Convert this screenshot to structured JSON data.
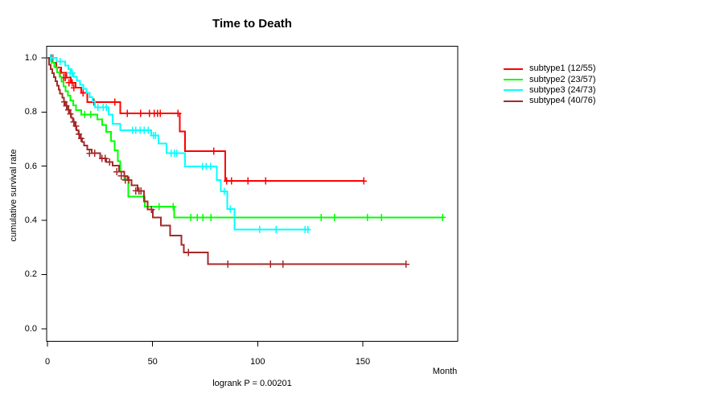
{
  "chart_data": {
    "type": "line",
    "variant": "kaplan_meier_step_curves",
    "title": "Time to Death",
    "xlabel": "Month",
    "ylabel": "cumulative survival rate",
    "annotation": "logrank P = 0.00201",
    "xlim": [
      0,
      196
    ],
    "ylim": [
      0,
      1
    ],
    "grid": false,
    "legend_position": "right",
    "x_ticks": [
      0,
      50,
      100,
      150
    ],
    "y_ticks": [
      0,
      0.2,
      0.4,
      0.6,
      0.8,
      1.0
    ],
    "x_tick_labels": [
      "0",
      "50",
      "100",
      "150"
    ],
    "y_tick_labels_top_to_bottom": [
      "1.0",
      "0.8",
      "0.6",
      "0.4",
      "0.2",
      "0.0"
    ],
    "series": [
      {
        "name": "subtype1",
        "label": "subtype1 (12/55)",
        "events": 12,
        "n": 55,
        "color": "#FF0000",
        "steps": [
          [
            0,
            1.0
          ],
          [
            2.4,
            0.982
          ],
          [
            4.2,
            0.964
          ],
          [
            6.5,
            0.945
          ],
          [
            9,
            0.927
          ],
          [
            11.1,
            0.908
          ],
          [
            13.3,
            0.89
          ],
          [
            16,
            0.87
          ],
          [
            19,
            0.837
          ],
          [
            34.7,
            0.795
          ],
          [
            63,
            0.728
          ],
          [
            65.5,
            0.655
          ],
          [
            84.6,
            0.545
          ]
        ],
        "end_month": 150.4,
        "censor_marks": [
          [
            1.8,
            1.0
          ],
          [
            2.6,
            1.0
          ],
          [
            6,
            0.945
          ],
          [
            7.8,
            0.927
          ],
          [
            8.5,
            0.927
          ],
          [
            10.2,
            0.908
          ],
          [
            11.8,
            0.908
          ],
          [
            12.6,
            0.89
          ],
          [
            17,
            0.87
          ],
          [
            22,
            0.837
          ],
          [
            32,
            0.837
          ],
          [
            37.9,
            0.795
          ],
          [
            44.3,
            0.795
          ],
          [
            48.5,
            0.795
          ],
          [
            50.8,
            0.795
          ],
          [
            52.3,
            0.795
          ],
          [
            53.6,
            0.795
          ],
          [
            62.1,
            0.795
          ],
          [
            79,
            0.655
          ],
          [
            85.3,
            0.545
          ],
          [
            87.6,
            0.545
          ],
          [
            95.3,
            0.545
          ],
          [
            103.7,
            0.545
          ],
          [
            150.4,
            0.545
          ]
        ]
      },
      {
        "name": "subtype2",
        "label": "subtype2 (23/57)",
        "events": 23,
        "n": 57,
        "color": "#00FF00",
        "steps": [
          [
            0,
            1.0
          ],
          [
            2,
            0.982
          ],
          [
            3.3,
            0.965
          ],
          [
            4.5,
            0.947
          ],
          [
            5.7,
            0.93
          ],
          [
            6.7,
            0.912
          ],
          [
            7.7,
            0.894
          ],
          [
            8.7,
            0.877
          ],
          [
            9.7,
            0.86
          ],
          [
            11,
            0.842
          ],
          [
            12.2,
            0.824
          ],
          [
            13.5,
            0.807
          ],
          [
            16,
            0.79
          ],
          [
            23.8,
            0.772
          ],
          [
            26,
            0.752
          ],
          [
            28,
            0.727
          ],
          [
            30.2,
            0.693
          ],
          [
            32,
            0.658
          ],
          [
            33.5,
            0.618
          ],
          [
            34.7,
            0.58
          ],
          [
            36.6,
            0.549
          ],
          [
            38.5,
            0.487
          ],
          [
            46.3,
            0.45
          ],
          [
            60.3,
            0.411
          ]
        ],
        "end_month": 187.9,
        "censor_marks": [
          [
            17.6,
            0.79
          ],
          [
            20.5,
            0.79
          ],
          [
            53,
            0.45
          ],
          [
            59.8,
            0.45
          ],
          [
            68.1,
            0.411
          ],
          [
            71.3,
            0.411
          ],
          [
            73.9,
            0.411
          ],
          [
            77.7,
            0.411
          ],
          [
            130.1,
            0.411
          ],
          [
            136.5,
            0.411
          ],
          [
            152.2,
            0.411
          ],
          [
            158.9,
            0.411
          ],
          [
            187.9,
            0.411
          ]
        ]
      },
      {
        "name": "subtype3",
        "label": "subtype3 (24/73)",
        "events": 24,
        "n": 73,
        "color": "#00FFFF",
        "steps": [
          [
            0,
            1.0
          ],
          [
            4.4,
            0.986
          ],
          [
            8.5,
            0.972
          ],
          [
            10,
            0.958
          ],
          [
            11.5,
            0.944
          ],
          [
            12.5,
            0.93
          ],
          [
            14,
            0.915
          ],
          [
            15.5,
            0.9
          ],
          [
            17,
            0.885
          ],
          [
            18.5,
            0.87
          ],
          [
            20,
            0.855
          ],
          [
            21.5,
            0.84
          ],
          [
            22.6,
            0.817
          ],
          [
            29,
            0.79
          ],
          [
            31,
            0.757
          ],
          [
            34.7,
            0.733
          ],
          [
            49.4,
            0.713
          ],
          [
            52.8,
            0.683
          ],
          [
            56.6,
            0.648
          ],
          [
            65.5,
            0.599
          ],
          [
            80.5,
            0.549
          ],
          [
            82.5,
            0.507
          ],
          [
            85.5,
            0.441
          ],
          [
            88.9,
            0.366
          ]
        ],
        "end_month": 124.8,
        "censor_marks": [
          [
            1.5,
            1.0
          ],
          [
            2.8,
            1.0
          ],
          [
            6,
            0.986
          ],
          [
            10.8,
            0.944
          ],
          [
            11.8,
            0.944
          ],
          [
            24,
            0.817
          ],
          [
            26.5,
            0.817
          ],
          [
            28,
            0.817
          ],
          [
            40.4,
            0.733
          ],
          [
            42,
            0.733
          ],
          [
            44,
            0.733
          ],
          [
            46,
            0.733
          ],
          [
            48,
            0.733
          ],
          [
            50.4,
            0.713
          ],
          [
            51.4,
            0.713
          ],
          [
            58.9,
            0.648
          ],
          [
            60.3,
            0.648
          ],
          [
            61.4,
            0.648
          ],
          [
            73.7,
            0.599
          ],
          [
            75.5,
            0.599
          ],
          [
            77.6,
            0.599
          ],
          [
            84,
            0.507
          ],
          [
            87,
            0.441
          ],
          [
            101,
            0.366
          ],
          [
            108.8,
            0.366
          ],
          [
            122.6,
            0.366
          ],
          [
            123.8,
            0.366
          ]
        ]
      },
      {
        "name": "subtype4",
        "label": "subtype4 (40/76)",
        "events": 40,
        "n": 76,
        "color": "#A52A2A",
        "steps": [
          [
            0,
            1.0
          ],
          [
            0.8,
            0.974
          ],
          [
            1.5,
            0.958
          ],
          [
            2.3,
            0.943
          ],
          [
            3,
            0.928
          ],
          [
            3.8,
            0.913
          ],
          [
            4.5,
            0.898
          ],
          [
            5.3,
            0.883
          ],
          [
            6,
            0.868
          ],
          [
            7,
            0.853
          ],
          [
            7.8,
            0.838
          ],
          [
            8.6,
            0.823
          ],
          [
            9.5,
            0.808
          ],
          [
            10.3,
            0.793
          ],
          [
            11.2,
            0.778
          ],
          [
            12,
            0.763
          ],
          [
            13,
            0.748
          ],
          [
            13.8,
            0.733
          ],
          [
            14.8,
            0.718
          ],
          [
            15.7,
            0.703
          ],
          [
            16.5,
            0.69
          ],
          [
            17.5,
            0.676
          ],
          [
            19,
            0.662
          ],
          [
            21,
            0.648
          ],
          [
            25.1,
            0.628
          ],
          [
            28,
            0.616
          ],
          [
            31,
            0.602
          ],
          [
            34,
            0.579
          ],
          [
            36.6,
            0.564
          ],
          [
            38,
            0.549
          ],
          [
            40,
            0.529
          ],
          [
            42.8,
            0.509
          ],
          [
            46,
            0.47
          ],
          [
            47.6,
            0.44
          ],
          [
            50.1,
            0.411
          ],
          [
            54,
            0.381
          ],
          [
            58.4,
            0.343
          ],
          [
            63.8,
            0.31
          ],
          [
            64.8,
            0.282
          ],
          [
            76.3,
            0.238
          ]
        ],
        "end_month": 170.6,
        "censor_marks": [
          [
            8,
            0.838
          ],
          [
            9,
            0.823
          ],
          [
            10,
            0.808
          ],
          [
            11,
            0.793
          ],
          [
            12.5,
            0.763
          ],
          [
            13.5,
            0.748
          ],
          [
            15,
            0.718
          ],
          [
            16,
            0.703
          ],
          [
            20,
            0.648
          ],
          [
            22.5,
            0.648
          ],
          [
            26,
            0.628
          ],
          [
            27.5,
            0.628
          ],
          [
            29.5,
            0.616
          ],
          [
            33,
            0.579
          ],
          [
            35,
            0.564
          ],
          [
            37,
            0.549
          ],
          [
            38.8,
            0.549
          ],
          [
            42,
            0.509
          ],
          [
            43.5,
            0.509
          ],
          [
            44.5,
            0.509
          ],
          [
            49.5,
            0.44
          ],
          [
            67.1,
            0.282
          ],
          [
            85.8,
            0.238
          ],
          [
            106,
            0.238
          ],
          [
            112,
            0.238
          ],
          [
            170.6,
            0.238
          ]
        ]
      }
    ]
  }
}
